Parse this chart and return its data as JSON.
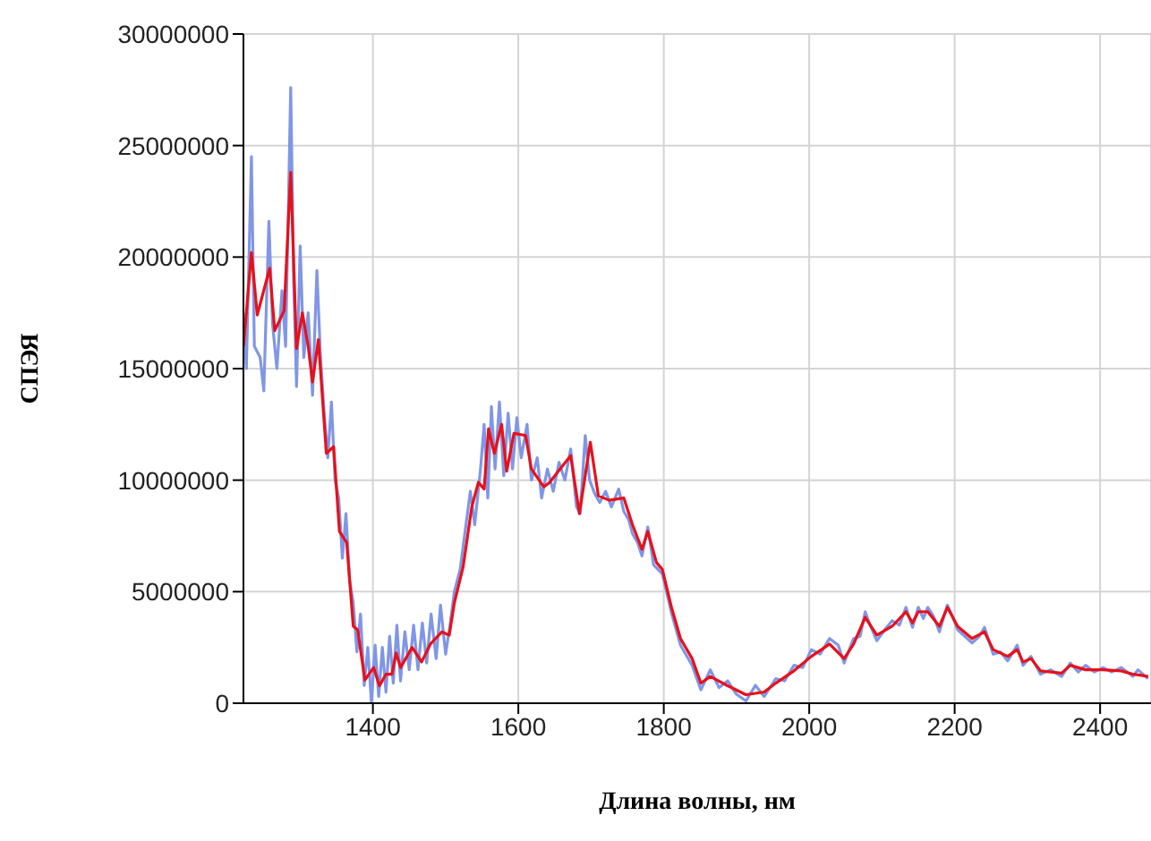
{
  "chart_data": {
    "type": "line",
    "xlabel": "Длина волны, нм",
    "ylabel": "СПЭЯ",
    "xlim": [
      1222,
      2470
    ],
    "ylim": [
      0,
      30000000
    ],
    "xticks": [
      1400,
      1600,
      1800,
      2000,
      2200,
      2400
    ],
    "yticks": [
      0,
      5000000,
      10000000,
      15000000,
      20000000,
      25000000,
      30000000
    ],
    "grid": true,
    "legend": false,
    "series": [
      {
        "color": "#8096e6",
        "x": [
          1222,
          1226,
          1233,
          1237,
          1245,
          1250,
          1257,
          1262,
          1268,
          1275,
          1280,
          1287,
          1291,
          1295,
          1300,
          1305,
          1311,
          1317,
          1323,
          1328,
          1333,
          1338,
          1343,
          1348,
          1353,
          1358,
          1363,
          1368,
          1373,
          1378,
          1383,
          1388,
          1393,
          1398,
          1403,
          1408,
          1413,
          1418,
          1423,
          1428,
          1433,
          1438,
          1444,
          1450,
          1456,
          1462,
          1468,
          1474,
          1480,
          1487,
          1493,
          1500,
          1506,
          1512,
          1520,
          1528,
          1534,
          1540,
          1548,
          1553,
          1558,
          1563,
          1568,
          1574,
          1580,
          1586,
          1592,
          1598,
          1604,
          1612,
          1618,
          1626,
          1632,
          1640,
          1648,
          1656,
          1664,
          1672,
          1680,
          1685,
          1692,
          1698,
          1705,
          1712,
          1720,
          1728,
          1738,
          1745,
          1752,
          1757,
          1764,
          1770,
          1778,
          1786,
          1798,
          1811,
          1823,
          1839,
          1851,
          1864,
          1876,
          1888,
          1900,
          1913,
          1926,
          1938,
          1954,
          1966,
          1979,
          1991,
          2003,
          2015,
          2028,
          2040,
          2048,
          2061,
          2070,
          2077,
          2085,
          2093,
          2104,
          2114,
          2124,
          2133,
          2142,
          2150,
          2157,
          2163,
          2171,
          2179,
          2190,
          2197,
          2204,
          2214,
          2224,
          2234,
          2241,
          2253,
          2263,
          2273,
          2286,
          2294,
          2305,
          2318,
          2332,
          2347,
          2359,
          2370,
          2380,
          2392,
          2404,
          2416,
          2429,
          2445,
          2452,
          2466
        ],
        "values": [
          17500000,
          15000000,
          24500000,
          16000000,
          15500000,
          14000000,
          21600000,
          17000000,
          15000000,
          18500000,
          16000000,
          27600000,
          19000000,
          14200000,
          20500000,
          15500000,
          17500000,
          13800000,
          19400000,
          15500000,
          13000000,
          11000000,
          13500000,
          10000000,
          9200000,
          6500000,
          8500000,
          5500000,
          4500000,
          2300000,
          4000000,
          800000,
          2500000,
          0,
          2600000,
          300000,
          2500000,
          500000,
          3000000,
          900000,
          3500000,
          1000000,
          3200000,
          1500000,
          3500000,
          1500000,
          3600000,
          1800000,
          4000000,
          2000000,
          4400000,
          2200000,
          3500000,
          5000000,
          6000000,
          8000000,
          9500000,
          8000000,
          10500000,
          12500000,
          9200000,
          13300000,
          10500000,
          13500000,
          10200000,
          13000000,
          10500000,
          12800000,
          11000000,
          12500000,
          10000000,
          11000000,
          9200000,
          10500000,
          9500000,
          10800000,
          10000000,
          11400000,
          8800000,
          8500000,
          12000000,
          10000000,
          9400000,
          9000000,
          9500000,
          8800000,
          9600000,
          8600000,
          8200000,
          7600000,
          7200000,
          6600000,
          7900000,
          6200000,
          5800000,
          4000000,
          2600000,
          1700000,
          600000,
          1500000,
          700000,
          1000000,
          400000,
          100000,
          800000,
          300000,
          1100000,
          1000000,
          1700000,
          1600000,
          2400000,
          2200000,
          2900000,
          2600000,
          1800000,
          2900000,
          3000000,
          4100000,
          3400000,
          2800000,
          3300000,
          3700000,
          3500000,
          4300000,
          3400000,
          4300000,
          3800000,
          4300000,
          3900000,
          3200000,
          4400000,
          3900000,
          3300000,
          3000000,
          2700000,
          3000000,
          3400000,
          2200000,
          2300000,
          1900000,
          2600000,
          1700000,
          2100000,
          1300000,
          1500000,
          1200000,
          1800000,
          1400000,
          1700000,
          1400000,
          1600000,
          1400000,
          1600000,
          1200000,
          1500000,
          1100000
        ]
      },
      {
        "color": "#e8101a",
        "x": [
          1222,
          1233,
          1241,
          1258,
          1265,
          1278,
          1287,
          1295,
          1303,
          1311,
          1317,
          1325,
          1336,
          1346,
          1354,
          1364,
          1373,
          1379,
          1389,
          1401,
          1409,
          1418,
          1426,
          1432,
          1438,
          1454,
          1467,
          1479,
          1495,
          1505,
          1512,
          1524,
          1536,
          1545,
          1553,
          1559,
          1567,
          1577,
          1584,
          1594,
          1610,
          1618,
          1635,
          1643,
          1655,
          1672,
          1684,
          1699,
          1710,
          1725,
          1745,
          1757,
          1770,
          1778,
          1790,
          1798,
          1811,
          1823,
          1839,
          1851,
          1864,
          1888,
          1913,
          1938,
          1954,
          1979,
          2003,
          2028,
          2048,
          2061,
          2077,
          2093,
          2114,
          2133,
          2142,
          2150,
          2163,
          2179,
          2190,
          2204,
          2224,
          2241,
          2253,
          2273,
          2286,
          2294,
          2305,
          2318,
          2347,
          2359,
          2380,
          2404,
          2429,
          2445,
          2457,
          2466
        ],
        "values": [
          16000000,
          20200000,
          17400000,
          19500000,
          16700000,
          17600000,
          23800000,
          15900000,
          17500000,
          16000000,
          14400000,
          16300000,
          11200000,
          11500000,
          7700000,
          7200000,
          3450000,
          3300000,
          1040000,
          1600000,
          780000,
          1300000,
          1300000,
          2250000,
          1600000,
          2500000,
          1850000,
          2650000,
          3200000,
          3050000,
          4500000,
          6100000,
          8800000,
          9900000,
          9600000,
          12300000,
          11200000,
          12500000,
          10400000,
          12100000,
          12000000,
          10500000,
          9700000,
          9900000,
          10400000,
          11100000,
          8500000,
          11700000,
          9300000,
          9100000,
          9200000,
          8000000,
          6900000,
          7700000,
          6300000,
          6000000,
          4250000,
          2900000,
          2000000,
          900000,
          1200000,
          780000,
          380000,
          500000,
          900000,
          1450000,
          2100000,
          2650000,
          2000000,
          2650000,
          3850000,
          3050000,
          3450000,
          4100000,
          3600000,
          4100000,
          4100000,
          3450000,
          4300000,
          3450000,
          2900000,
          3200000,
          2400000,
          2100000,
          2400000,
          1850000,
          2000000,
          1450000,
          1350000,
          1700000,
          1500000,
          1500000,
          1450000,
          1300000,
          1250000,
          1200000
        ]
      }
    ]
  }
}
